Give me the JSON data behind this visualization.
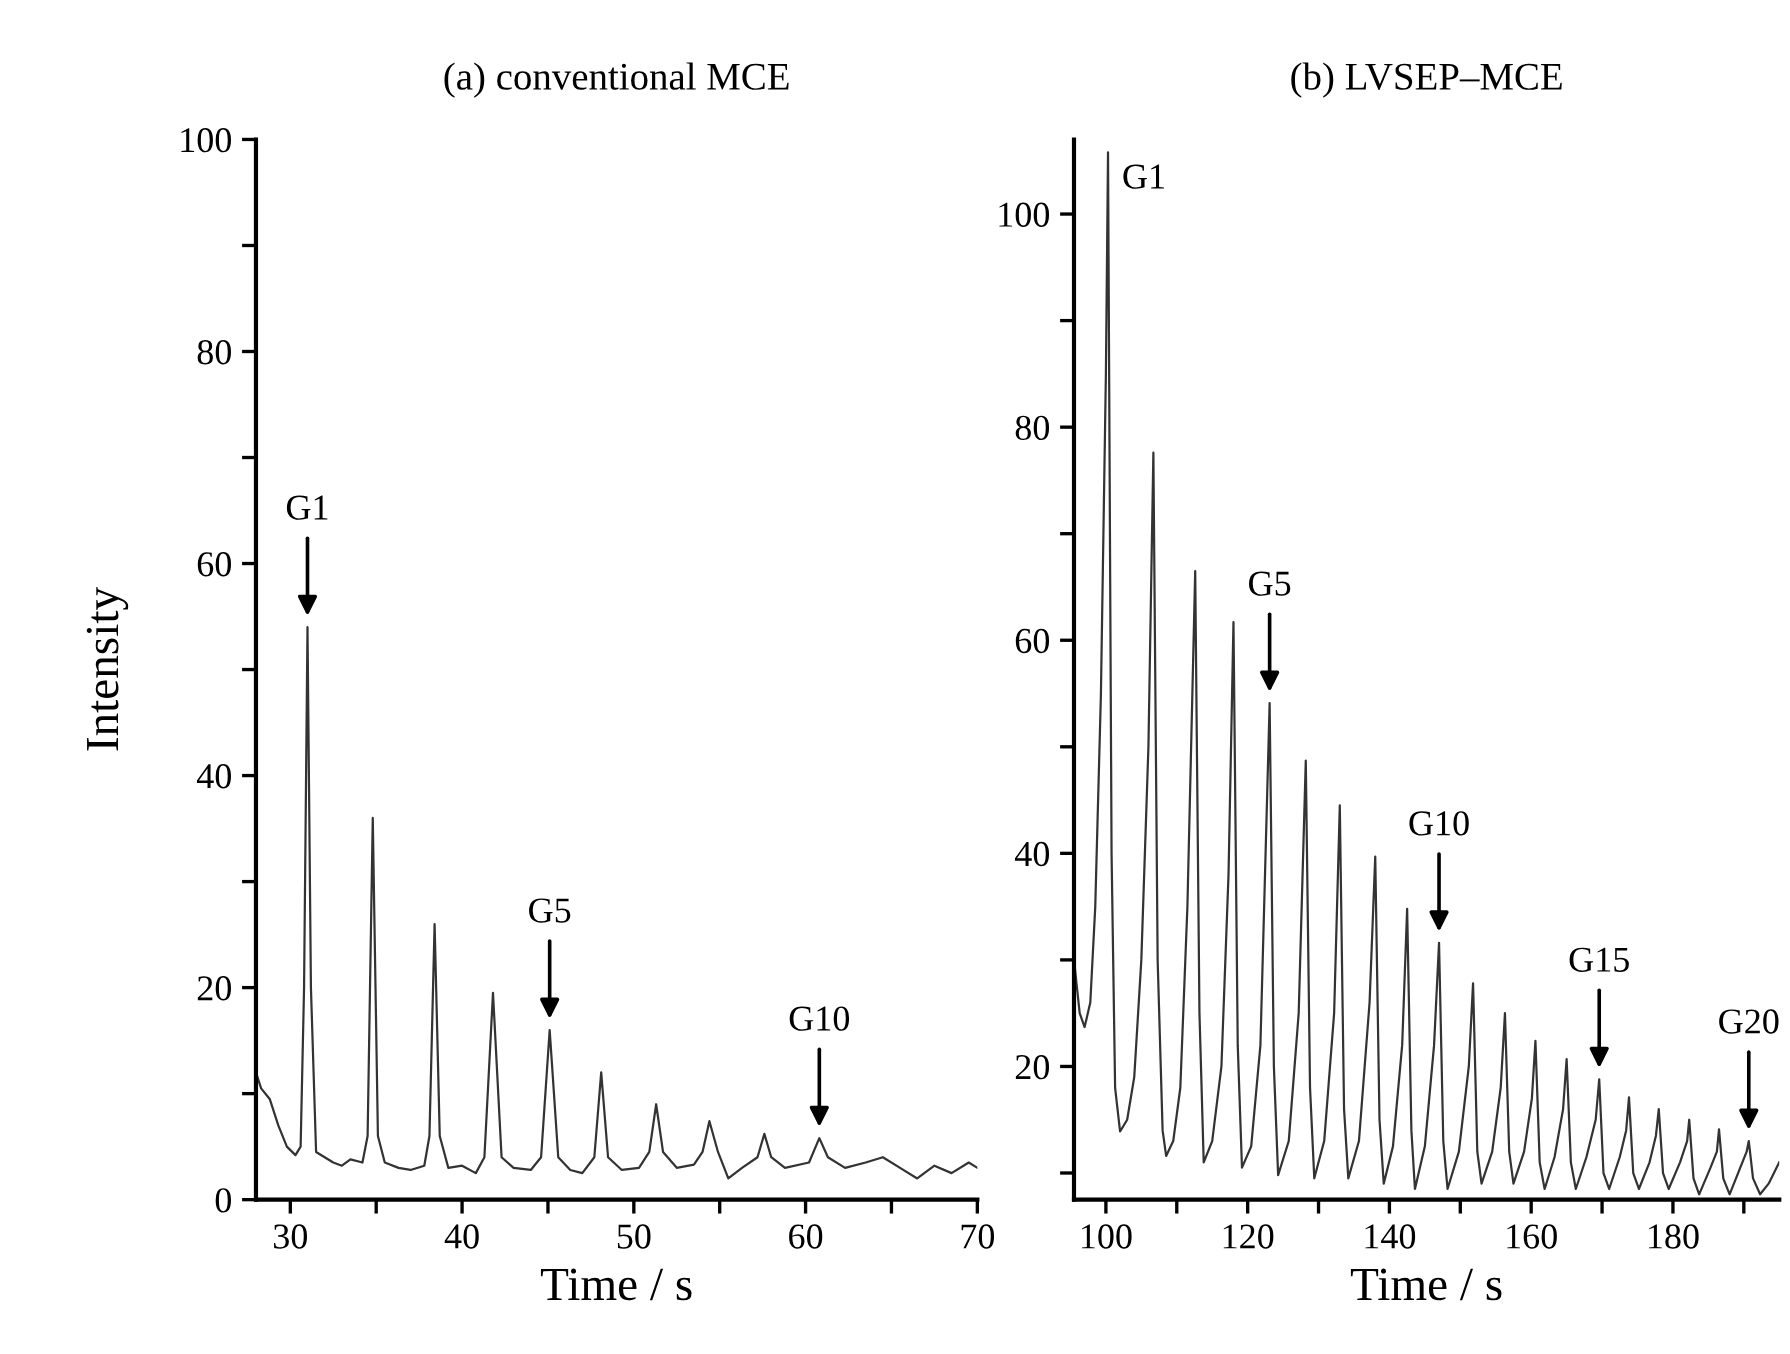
{
  "chart_data": [
    {
      "type": "line",
      "title": "(a) conventional MCE",
      "xlabel": "Time / s",
      "ylabel": "Intensity",
      "series": [
        {
          "color": "#333333",
          "x": [
            28,
            28.3,
            28.8,
            29.3,
            29.8,
            30.3,
            30.6,
            30.8,
            31.0,
            31.2,
            31.5,
            32,
            32.5,
            33,
            33.5,
            34.2,
            34.5,
            34.8,
            35.1,
            35.5,
            36.3,
            37,
            37.8,
            38.1,
            38.4,
            38.7,
            39.2,
            40,
            40.8,
            41.3,
            41.8,
            42.3,
            43,
            44,
            44.6,
            45.1,
            45.6,
            46.3,
            47,
            47.7,
            48.1,
            48.5,
            49.3,
            50.3,
            50.9,
            51.3,
            51.7,
            52.5,
            53.5,
            54,
            54.4,
            54.9,
            55.5,
            56.3,
            57.2,
            57.6,
            58,
            58.8,
            60.2,
            60.8,
            61.3,
            62.3,
            63.5,
            64.5,
            65.5,
            66.5,
            67.5,
            68.5,
            69.5,
            70
          ],
          "values": [
            12,
            10.5,
            9.5,
            7,
            5,
            4.2,
            5,
            20,
            54,
            20,
            4.5,
            4,
            3.5,
            3.2,
            3.8,
            3.5,
            6,
            36,
            6,
            3.5,
            3,
            2.8,
            3.2,
            6,
            26,
            6,
            3,
            3.2,
            2.5,
            4,
            19.5,
            4,
            3,
            2.8,
            4,
            16,
            4,
            2.8,
            2.5,
            4,
            12,
            4,
            2.8,
            3,
            4.5,
            9,
            4.5,
            3,
            3.3,
            4.5,
            7.4,
            4.5,
            2,
            3,
            4,
            6.2,
            4,
            3,
            3.5,
            5.8,
            4,
            3,
            3.5,
            4,
            3,
            2,
            3.2,
            2.5,
            3.5,
            3
          ]
        }
      ],
      "xlim": [
        28,
        70
      ],
      "xticks": [
        30,
        {
          "value": 35,
          "label": null
        },
        40,
        {
          "value": 45,
          "label": null
        },
        50,
        {
          "value": 55,
          "label": null
        },
        60,
        {
          "value": 65,
          "label": null
        },
        70
      ],
      "ylim": [
        0,
        100
      ],
      "yticks": [
        0,
        {
          "value": 10,
          "label": null
        },
        20,
        {
          "value": 30,
          "label": null
        },
        40,
        {
          "value": 50,
          "label": null
        },
        60,
        {
          "value": 70,
          "label": null
        },
        80,
        {
          "value": 90,
          "label": null
        },
        100
      ],
      "annotations": [
        {
          "text": "G1",
          "x": 31.0,
          "y": 54
        },
        {
          "text": "G5",
          "x": 45.1,
          "y": 16
        },
        {
          "text": "G10",
          "x": 60.8,
          "y": 5.8
        }
      ],
      "grid": false,
      "legend": false
    },
    {
      "type": "line",
      "title": "(b) LVSEP–MCE",
      "xlabel": "Time / s",
      "series": [
        {
          "color": "#333333",
          "x": [
            95.5,
            96.3,
            97,
            97.8,
            98.5,
            99.3,
            100,
            100.3,
            100.8,
            101.3,
            102,
            103,
            104,
            105,
            106,
            106.7,
            107.3,
            108,
            108.5,
            109.5,
            110.5,
            111.5,
            112.6,
            113.2,
            113.8,
            115,
            116.3,
            117.3,
            118,
            118.6,
            119.2,
            120.5,
            121.8,
            123.1,
            123.7,
            124.3,
            125.8,
            127.2,
            128.2,
            128.8,
            129.4,
            130.8,
            132.2,
            133,
            133.6,
            134.2,
            135.7,
            137.2,
            138,
            138.6,
            139.2,
            140.5,
            141.8,
            142.5,
            143.1,
            143.6,
            145,
            146.3,
            147,
            147.6,
            148.2,
            149.8,
            151.2,
            151.8,
            152.4,
            153,
            154.5,
            155.7,
            156.3,
            156.9,
            157.5,
            159,
            160.1,
            160.6,
            161.2,
            161.9,
            163.3,
            164.5,
            165,
            165.6,
            166.3,
            167.8,
            169.1,
            169.6,
            170.2,
            171,
            172.5,
            173.4,
            173.8,
            174.4,
            175.2,
            176.7,
            177.6,
            178,
            178.6,
            179.4,
            181,
            182,
            182.3,
            182.9,
            183.7,
            185.3,
            186.2,
            186.5,
            187.1,
            188,
            189.5,
            190.4,
            190.7,
            191.3,
            192.3,
            193.5,
            195
          ],
          "values": [
            30,
            25,
            23.7,
            26,
            35,
            55,
            85,
            105.8,
            40,
            18,
            13.9,
            15,
            19,
            30,
            50,
            77.6,
            30,
            14,
            11.6,
            13,
            18,
            35,
            66.5,
            25,
            11,
            13,
            20,
            38,
            61.7,
            22,
            10.5,
            12.5,
            22,
            54.1,
            20,
            9.8,
            13,
            25,
            48.7,
            18,
            9.5,
            13,
            25,
            44.5,
            16,
            9.5,
            13,
            26,
            39.7,
            15,
            9,
            12.5,
            22,
            34.8,
            14,
            8.5,
            12.5,
            22,
            31.6,
            13,
            8.5,
            12,
            20,
            27.8,
            12,
            9,
            12,
            18,
            25,
            12,
            9,
            12,
            17,
            22.4,
            11,
            8.5,
            11.5,
            16,
            20.7,
            11,
            8.5,
            11.5,
            15,
            18.8,
            10,
            8.5,
            11.5,
            14,
            17.1,
            10,
            8.5,
            11,
            13.5,
            16,
            10,
            8.5,
            11,
            13,
            15,
            9.5,
            8,
            10.5,
            12,
            14.1,
            9.5,
            8,
            10.5,
            12,
            13,
            9.5,
            8,
            9,
            11
          ]
        }
      ],
      "xlim": [
        95.5,
        195
      ],
      "xticks": [
        100,
        {
          "value": 110,
          "label": null
        },
        120,
        {
          "value": 130,
          "label": null
        },
        140,
        {
          "value": 150,
          "label": null
        },
        160,
        {
          "value": 170,
          "label": null
        },
        180,
        {
          "value": 190,
          "label": null
        }
      ],
      "ylim": [
        7.5,
        107
      ],
      "yticks": [
        {
          "value": 10,
          "label": null
        },
        20,
        {
          "value": 30,
          "label": null
        },
        40,
        {
          "value": 50,
          "label": null
        },
        60,
        {
          "value": 70,
          "label": null
        },
        80,
        {
          "value": 90,
          "label": null
        },
        100
      ],
      "annotations": [
        {
          "text": "G1",
          "x": 100.3,
          "y": 105.8
        },
        {
          "text": "G5",
          "x": 123.1,
          "y": 54.1
        },
        {
          "text": "G10",
          "x": 147,
          "y": 31.6
        },
        {
          "text": "G15",
          "x": 169.6,
          "y": 18.8
        },
        {
          "text": "G20",
          "x": 190.7,
          "y": 13
        }
      ],
      "grid": false,
      "legend": false
    }
  ]
}
